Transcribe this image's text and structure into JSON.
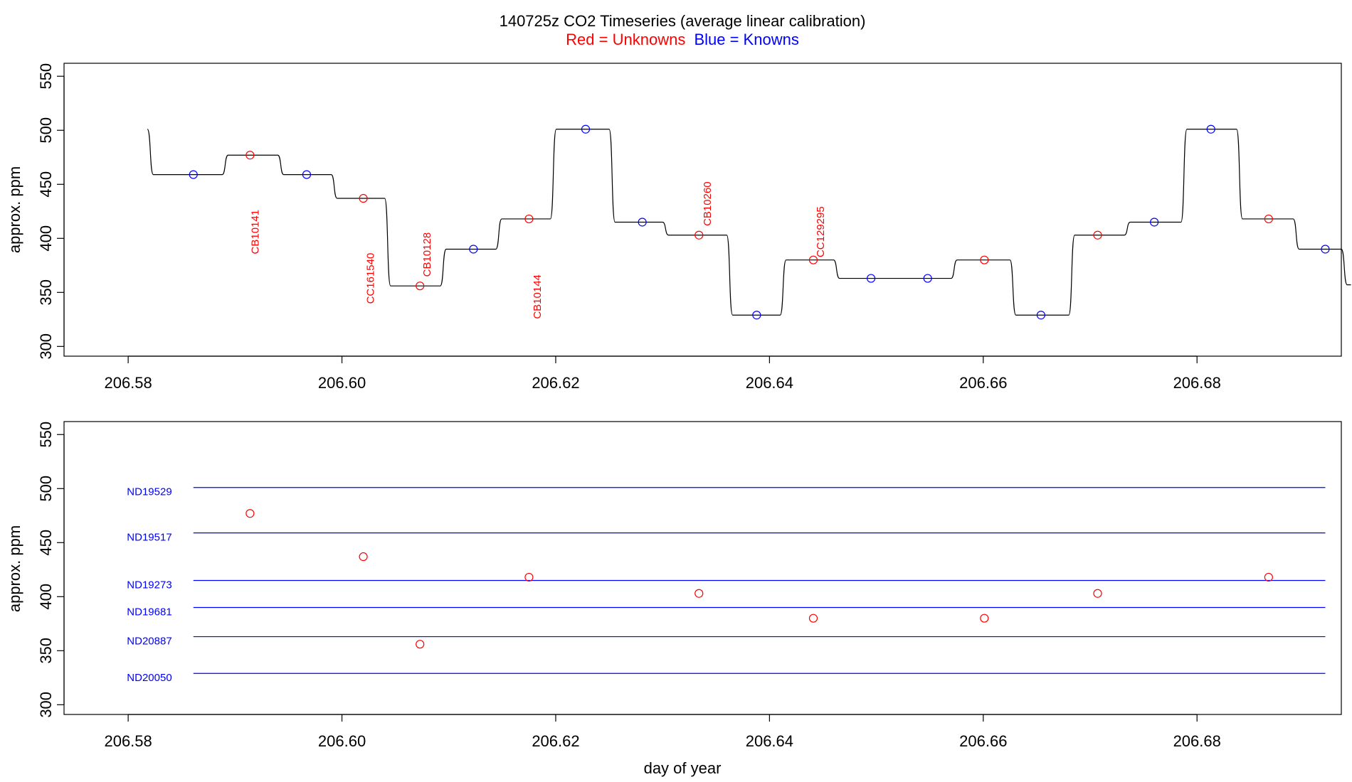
{
  "title": {
    "main": "140725z   CO2 Timeseries (average linear calibration)",
    "legend_red": "Red = Unknowns",
    "legend_blue": "Blue = Knowns"
  },
  "colors": {
    "unknown": "#ff0000",
    "known": "#0000ff",
    "trace": "#000000",
    "axis": "#000000"
  },
  "chart_data": [
    {
      "type": "line",
      "panel": "top",
      "ylabel": "approx. ppm",
      "xlabel": "",
      "xlim": [
        206.574,
        206.6935
      ],
      "ylim": [
        291,
        562
      ],
      "xticks": [
        206.58,
        206.6,
        206.62,
        206.64,
        206.66,
        206.68
      ],
      "xtick_labels": [
        "206.58",
        "206.60",
        "206.62",
        "206.64",
        "206.66",
        "206.68"
      ],
      "yticks": [
        300,
        350,
        400,
        450,
        500,
        550
      ],
      "ytick_labels": [
        "300",
        "350",
        "400",
        "450",
        "500",
        "550"
      ],
      "trace": {
        "start_x": 206.5818,
        "start_y": 501,
        "end_x": 206.6944,
        "levels": [
          {
            "end": 206.5888,
            "y": 459
          },
          {
            "end": 206.594,
            "y": 477
          },
          {
            "end": 206.599,
            "y": 459
          },
          {
            "end": 206.604,
            "y": 437
          },
          {
            "end": 206.6092,
            "y": 356
          },
          {
            "end": 206.6144,
            "y": 390
          },
          {
            "end": 206.6195,
            "y": 418
          },
          {
            "end": 206.625,
            "y": 501
          },
          {
            "end": 206.63,
            "y": 415
          },
          {
            "end": 206.636,
            "y": 403
          },
          {
            "end": 206.641,
            "y": 329
          },
          {
            "end": 206.646,
            "y": 380
          },
          {
            "end": 206.657,
            "y": 363
          },
          {
            "end": 206.6625,
            "y": 380
          },
          {
            "end": 206.668,
            "y": 329
          },
          {
            "end": 206.6732,
            "y": 403
          },
          {
            "end": 206.6785,
            "y": 415
          },
          {
            "end": 206.6837,
            "y": 501
          },
          {
            "end": 206.689,
            "y": 418
          },
          {
            "end": 206.6935,
            "y": 390
          },
          {
            "end": 206.6944,
            "y": 357
          }
        ]
      },
      "known_points": [
        {
          "x": 206.5861,
          "y": 459
        },
        {
          "x": 206.5967,
          "y": 459
        },
        {
          "x": 206.6123,
          "y": 390
        },
        {
          "x": 206.6228,
          "y": 501
        },
        {
          "x": 206.6281,
          "y": 415
        },
        {
          "x": 206.6388,
          "y": 329
        },
        {
          "x": 206.6495,
          "y": 363
        },
        {
          "x": 206.6548,
          "y": 363
        },
        {
          "x": 206.6654,
          "y": 329
        },
        {
          "x": 206.676,
          "y": 415
        },
        {
          "x": 206.6813,
          "y": 501
        },
        {
          "x": 206.692,
          "y": 390
        }
      ],
      "unknown_points": [
        {
          "x": 206.5914,
          "y": 477
        },
        {
          "x": 206.602,
          "y": 437
        },
        {
          "x": 206.6073,
          "y": 356
        },
        {
          "x": 206.6175,
          "y": 418
        },
        {
          "x": 206.6334,
          "y": 403
        },
        {
          "x": 206.6441,
          "y": 380
        },
        {
          "x": 206.6601,
          "y": 380
        },
        {
          "x": 206.6707,
          "y": 403
        },
        {
          "x": 206.6867,
          "y": 418
        }
      ],
      "annotations": [
        {
          "text": "CB10141",
          "x": 206.5918,
          "y": 406
        },
        {
          "text": "CC161540",
          "x": 206.6026,
          "y": 363
        },
        {
          "text": "CB10128",
          "x": 206.6079,
          "y": 385
        },
        {
          "text": "CB10144",
          "x": 206.6182,
          "y": 346
        },
        {
          "text": "CB10260",
          "x": 206.6341,
          "y": 432
        },
        {
          "text": "CC129295",
          "x": 206.6447,
          "y": 406
        }
      ]
    },
    {
      "type": "scatter",
      "panel": "bottom",
      "ylabel": "approx. ppm",
      "xlabel": "day of year",
      "xlim": [
        206.574,
        206.6935
      ],
      "ylim": [
        291,
        562
      ],
      "xticks": [
        206.58,
        206.6,
        206.62,
        206.64,
        206.66,
        206.68
      ],
      "xtick_labels": [
        "206.58",
        "206.60",
        "206.62",
        "206.64",
        "206.66",
        "206.68"
      ],
      "yticks": [
        300,
        350,
        400,
        450,
        500,
        550
      ],
      "ytick_labels": [
        "300",
        "350",
        "400",
        "450",
        "500",
        "550"
      ],
      "reference_lines": [
        {
          "name": "ND19529",
          "y": 501
        },
        {
          "name": "ND19517",
          "y": 459
        },
        {
          "name": "ND19273",
          "y": 415
        },
        {
          "name": "ND19681",
          "y": 390
        },
        {
          "name": "ND20887",
          "y": 363
        },
        {
          "name": "ND20050",
          "y": 329
        }
      ],
      "reference_x_range": [
        206.5861,
        206.692
      ],
      "unknown_points": [
        {
          "x": 206.5914,
          "y": 477
        },
        {
          "x": 206.602,
          "y": 437
        },
        {
          "x": 206.6073,
          "y": 356
        },
        {
          "x": 206.6175,
          "y": 418
        },
        {
          "x": 206.6334,
          "y": 403
        },
        {
          "x": 206.6441,
          "y": 380
        },
        {
          "x": 206.6601,
          "y": 380
        },
        {
          "x": 206.6707,
          "y": 403
        },
        {
          "x": 206.6867,
          "y": 418
        }
      ]
    }
  ]
}
